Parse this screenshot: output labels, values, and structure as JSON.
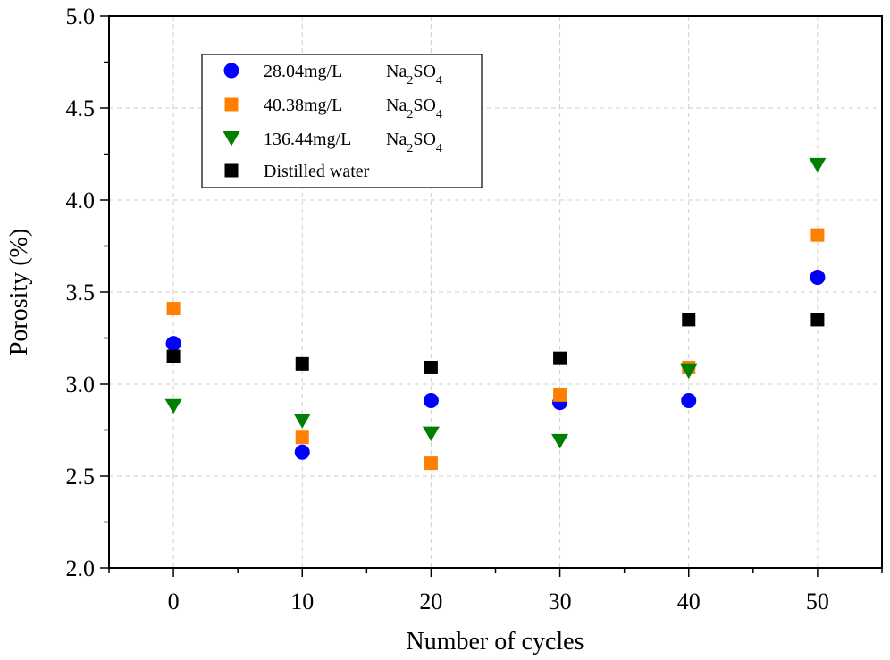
{
  "chart_data": {
    "type": "scatter",
    "title": "",
    "xlabel": "Number of cycles",
    "ylabel": "Porosity (%)",
    "xlim": [
      -5,
      55
    ],
    "ylim": [
      2.0,
      5.0
    ],
    "x_ticks": [
      0,
      10,
      20,
      30,
      40,
      50
    ],
    "x_tick_labels": [
      "0",
      "10",
      "20",
      "30",
      "40",
      "50"
    ],
    "y_ticks": [
      2.0,
      2.5,
      3.0,
      3.5,
      4.0,
      4.5,
      5.0
    ],
    "y_tick_labels": [
      "2.0",
      "2.5",
      "3.0",
      "3.5",
      "4.0",
      "4.5",
      "5.0"
    ],
    "grid": true,
    "legend_position": "top-left",
    "series": [
      {
        "name": "28.04mg/L",
        "salt": "Na2SO4",
        "marker": "circle",
        "color": "#0000ff",
        "x": [
          0,
          10,
          20,
          30,
          40,
          50
        ],
        "y": [
          3.22,
          2.63,
          2.91,
          2.9,
          2.91,
          3.58
        ]
      },
      {
        "name": "40.38mg/L",
        "salt": "Na2SO4",
        "marker": "square",
        "color": "#ff8000",
        "x": [
          0,
          10,
          20,
          30,
          40,
          50
        ],
        "y": [
          3.41,
          2.71,
          2.57,
          2.94,
          3.09,
          3.81
        ]
      },
      {
        "name": "136.44mg/L",
        "salt": "Na2SO4",
        "marker": "triangle-down",
        "color": "#008000",
        "x": [
          0,
          10,
          20,
          30,
          40,
          50
        ],
        "y": [
          2.88,
          2.8,
          2.73,
          2.69,
          3.07,
          4.19
        ]
      },
      {
        "name": "Distilled water",
        "salt": "",
        "marker": "square",
        "color": "#000000",
        "x": [
          0,
          10,
          20,
          30,
          40,
          50
        ],
        "y": [
          3.15,
          3.11,
          3.09,
          3.14,
          3.35,
          3.35
        ]
      }
    ]
  }
}
